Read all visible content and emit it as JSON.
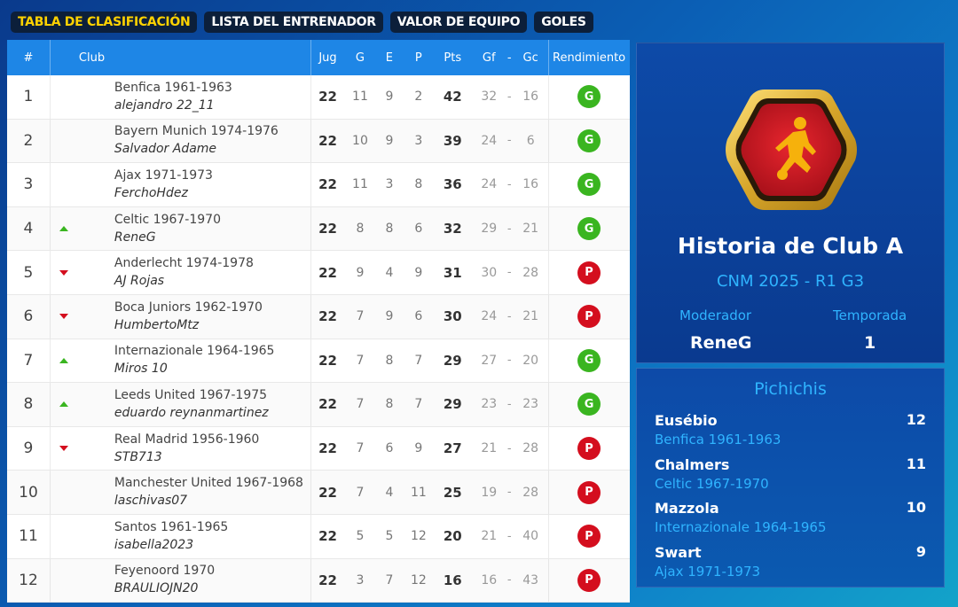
{
  "tabs": [
    {
      "label": "TABLA DE CLASIFICACIÓN",
      "active": true
    },
    {
      "label": "LISTA DEL ENTRENADOR",
      "active": false
    },
    {
      "label": "VALOR DE EQUIPO",
      "active": false
    },
    {
      "label": "GOLES",
      "active": false
    }
  ],
  "table": {
    "headers": {
      "pos": "#",
      "club": "Club",
      "jug": "Jug",
      "g": "G",
      "e": "E",
      "p": "P",
      "pts": "Pts",
      "gf": "Gf",
      "dash": "-",
      "gc": "Gc",
      "rend": "Rendimiento"
    },
    "rows": [
      {
        "pos": "1",
        "move": "none",
        "club": "Benfica 1961-1963",
        "coach": "alejandro 22_11",
        "jug": "22",
        "g": "11",
        "e": "9",
        "p": "2",
        "pts": "42",
        "gf": "32",
        "dash": "-",
        "gc": "16",
        "rend": "G"
      },
      {
        "pos": "2",
        "move": "none",
        "club": "Bayern Munich 1974-1976",
        "coach": "Salvador Adame",
        "jug": "22",
        "g": "10",
        "e": "9",
        "p": "3",
        "pts": "39",
        "gf": "24",
        "dash": "-",
        "gc": "6",
        "rend": "G"
      },
      {
        "pos": "3",
        "move": "none",
        "club": "Ajax 1971-1973",
        "coach": "FerchoHdez",
        "jug": "22",
        "g": "11",
        "e": "3",
        "p": "8",
        "pts": "36",
        "gf": "24",
        "dash": "-",
        "gc": "16",
        "rend": "G"
      },
      {
        "pos": "4",
        "move": "up",
        "club": "Celtic 1967-1970",
        "coach": "ReneG",
        "jug": "22",
        "g": "8",
        "e": "8",
        "p": "6",
        "pts": "32",
        "gf": "29",
        "dash": "-",
        "gc": "21",
        "rend": "G"
      },
      {
        "pos": "5",
        "move": "down",
        "club": "Anderlecht 1974-1978",
        "coach": "AJ Rojas",
        "jug": "22",
        "g": "9",
        "e": "4",
        "p": "9",
        "pts": "31",
        "gf": "30",
        "dash": "-",
        "gc": "28",
        "rend": "P"
      },
      {
        "pos": "6",
        "move": "down",
        "club": "Boca Juniors 1962-1970",
        "coach": "HumbertoMtz",
        "jug": "22",
        "g": "7",
        "e": "9",
        "p": "6",
        "pts": "30",
        "gf": "24",
        "dash": "-",
        "gc": "21",
        "rend": "P"
      },
      {
        "pos": "7",
        "move": "up",
        "club": "Internazionale 1964-1965",
        "coach": "Miros 10",
        "jug": "22",
        "g": "7",
        "e": "8",
        "p": "7",
        "pts": "29",
        "gf": "27",
        "dash": "-",
        "gc": "20",
        "rend": "G"
      },
      {
        "pos": "8",
        "move": "up",
        "club": "Leeds United 1967-1975",
        "coach": "eduardo reynanmartinez",
        "jug": "22",
        "g": "7",
        "e": "8",
        "p": "7",
        "pts": "29",
        "gf": "23",
        "dash": "-",
        "gc": "23",
        "rend": "G"
      },
      {
        "pos": "9",
        "move": "down",
        "club": "Real Madrid 1956-1960",
        "coach": "STB713",
        "jug": "22",
        "g": "7",
        "e": "6",
        "p": "9",
        "pts": "27",
        "gf": "21",
        "dash": "-",
        "gc": "28",
        "rend": "P"
      },
      {
        "pos": "10",
        "move": "none",
        "club": "Manchester United 1967-1968",
        "coach": "laschivas07",
        "jug": "22",
        "g": "7",
        "e": "4",
        "p": "11",
        "pts": "25",
        "gf": "19",
        "dash": "-",
        "gc": "28",
        "rend": "P"
      },
      {
        "pos": "11",
        "move": "none",
        "club": "Santos 1961-1965",
        "coach": "isabella2023",
        "jug": "22",
        "g": "5",
        "e": "5",
        "p": "12",
        "pts": "20",
        "gf": "21",
        "dash": "-",
        "gc": "40",
        "rend": "P"
      },
      {
        "pos": "12",
        "move": "none",
        "club": "Feyenoord 1970",
        "coach": "BRAULIOJN20",
        "jug": "22",
        "g": "3",
        "e": "7",
        "p": "12",
        "pts": "16",
        "gf": "16",
        "dash": "-",
        "gc": "43",
        "rend": "P"
      }
    ]
  },
  "league": {
    "icon": "football-player-emblem-icon",
    "title": "Historia de Club A",
    "subtitle": "CNM 2025 - R1 G3",
    "moderator_label": "Moderador",
    "moderator": "ReneG",
    "season_label": "Temporada",
    "season": "1"
  },
  "scorers": {
    "title": "Pichichis",
    "items": [
      {
        "name": "Eusébio",
        "club": "Benfica 1961-1963",
        "goals": "12"
      },
      {
        "name": "Chalmers",
        "club": "Celtic 1967-1970",
        "goals": "11"
      },
      {
        "name": "Mazzola",
        "club": "Internazionale 1964-1965",
        "goals": "10"
      },
      {
        "name": "Swart",
        "club": "Ajax 1971-1973",
        "goals": "9"
      }
    ]
  },
  "colors": {
    "win_badge": "#3ab520",
    "loss_badge": "#d40e1e",
    "accent": "#2fb4ff",
    "active_tab": "#ffd200"
  }
}
